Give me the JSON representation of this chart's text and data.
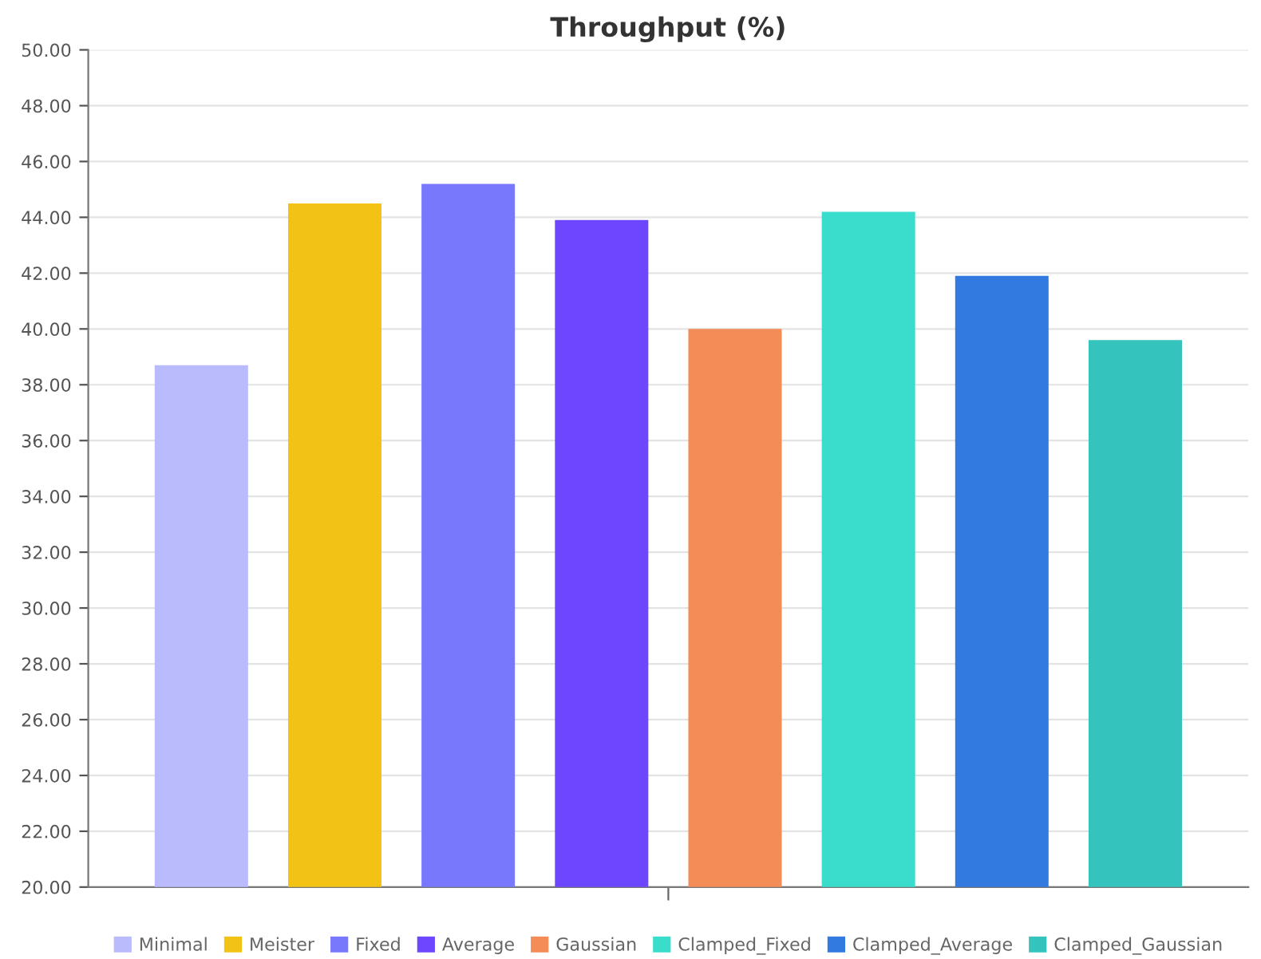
{
  "chart_data": {
    "type": "bar",
    "title": "Throughput (%)",
    "categories": [
      null
    ],
    "series": [
      {
        "name": "Minimal",
        "color": "#babbfd",
        "values": [
          38.7
        ]
      },
      {
        "name": "Meister",
        "color": "#f2c314",
        "values": [
          44.5
        ]
      },
      {
        "name": "Fixed",
        "color": "#7878fd",
        "values": [
          45.2
        ]
      },
      {
        "name": "Average",
        "color": "#6c47fd",
        "values": [
          43.9
        ]
      },
      {
        "name": "Gaussian",
        "color": "#f38c56",
        "values": [
          40.0
        ]
      },
      {
        "name": "Clamped_Fixed",
        "color": "#3adccb",
        "values": [
          44.2
        ]
      },
      {
        "name": "Clamped_Average",
        "color": "#327ae0",
        "values": [
          41.9
        ]
      },
      {
        "name": "Clamped_Gaussian",
        "color": "#34c3bd",
        "values": [
          39.6
        ]
      }
    ],
    "ylim": [
      20,
      50
    ],
    "yticks": [
      {
        "value": 20,
        "label": "20.00"
      },
      {
        "value": 22,
        "label": "22.00"
      },
      {
        "value": 24,
        "label": "24.00"
      },
      {
        "value": 26,
        "label": "26.00"
      },
      {
        "value": 28,
        "label": "28.00"
      },
      {
        "value": 30,
        "label": "30.00"
      },
      {
        "value": 32,
        "label": "32.00"
      },
      {
        "value": 34,
        "label": "34.00"
      },
      {
        "value": 36,
        "label": "36.00"
      },
      {
        "value": 38,
        "label": "38.00"
      },
      {
        "value": 40,
        "label": "40.00"
      },
      {
        "value": 42,
        "label": "42.00"
      },
      {
        "value": 44,
        "label": "44.00"
      },
      {
        "value": 46,
        "label": "46.00"
      },
      {
        "value": 48,
        "label": "48.00"
      },
      {
        "value": 50,
        "label": "50.00"
      }
    ],
    "grid": "y",
    "legend": "bottom"
  }
}
